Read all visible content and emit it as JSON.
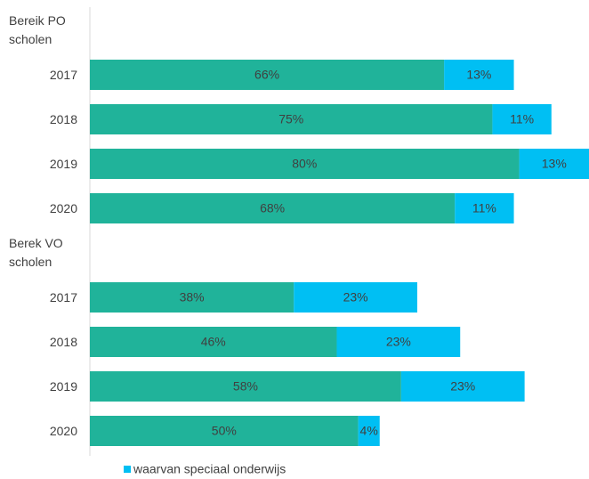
{
  "chart_data": {
    "type": "stacked-bar-horizontal",
    "categories": [
      "Bereik PO scholen",
      "2017",
      "2018",
      "2019",
      "2020",
      "Berek VO scholen",
      "2017",
      "2018",
      "2019",
      "2020"
    ],
    "series": [
      {
        "color": "#20b39a",
        "values": [
          null,
          66,
          75,
          80,
          68,
          null,
          38,
          46,
          58,
          50
        ],
        "value_labels": [
          null,
          "66%",
          "75%",
          "80%",
          "68%",
          null,
          "38%",
          "46%",
          "58%",
          "50%"
        ]
      },
      {
        "name": "waarvan speciaal onderwijs",
        "color": "#00bff3",
        "values": [
          null,
          13,
          11,
          13,
          11,
          null,
          23,
          23,
          23,
          4
        ],
        "value_labels": [
          null,
          "13%",
          "11%",
          "13%",
          "11%",
          null,
          "23%",
          "23%",
          "23%",
          "4%"
        ]
      }
    ]
  }
}
